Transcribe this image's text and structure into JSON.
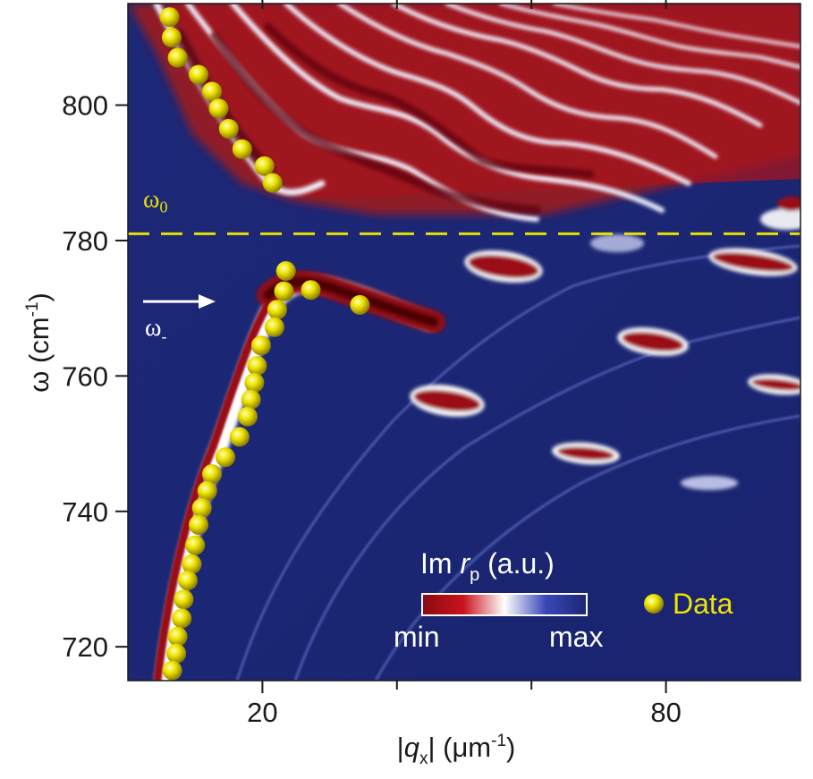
{
  "chart_data": {
    "type": "heatmap",
    "title": "",
    "xlabel": {
      "prefix": "|",
      "var": "q",
      "sub": "x",
      "mid": "| (",
      "unit": "μm",
      "sup": "-1",
      "close": ")"
    },
    "ylabel": {
      "var": "ω",
      "open": " (cm",
      "sup": "-1",
      "close": ")"
    },
    "xlim": [
      0,
      100
    ],
    "ylim": [
      715,
      815
    ],
    "x_ticks": [
      20,
      80
    ],
    "x_minor_ticks": [
      40,
      60
    ],
    "y_ticks": [
      720,
      740,
      760,
      780,
      800
    ],
    "grid": false,
    "colorbar": {
      "title_prefix": "Im ",
      "title_var": "r",
      "title_sub": "p",
      "title_suffix": " (a.u.)",
      "min_label": "min",
      "max_label": "max",
      "low_color": "#8a0a12",
      "mid_color": "#ffffff",
      "high_color": "#1b2673"
    },
    "omega0": {
      "label": "ω",
      "sub": "0",
      "value": 781,
      "color": "#e8e000"
    },
    "omega_minus": {
      "label": "ω",
      "sub": "-",
      "arrow_y": 771
    },
    "legend": {
      "label": "Data",
      "position": "bottom-right",
      "color": "#e6e000"
    },
    "series": [
      {
        "name": "Data",
        "type": "scatter",
        "points": [
          [
            6.2,
            813
          ],
          [
            6.5,
            810
          ],
          [
            7.4,
            807
          ],
          [
            10.5,
            804.5
          ],
          [
            12.5,
            802
          ],
          [
            13.5,
            799.5
          ],
          [
            15,
            796.5
          ],
          [
            17,
            793.5
          ],
          [
            20.3,
            791
          ],
          [
            21.5,
            788.5
          ],
          [
            23.5,
            775.5
          ],
          [
            23.2,
            772.5
          ],
          [
            27.2,
            772.7
          ],
          [
            34.5,
            770.5
          ],
          [
            22.2,
            769.8
          ],
          [
            21.8,
            767.2
          ],
          [
            19.8,
            764.5
          ],
          [
            19.2,
            761.5
          ],
          [
            18.8,
            759.0
          ],
          [
            18.3,
            756.5
          ],
          [
            17.8,
            754.0
          ],
          [
            16.6,
            751.0
          ],
          [
            14.5,
            748.0
          ],
          [
            12.5,
            745.5
          ],
          [
            11.8,
            743.0
          ],
          [
            11.0,
            740.5
          ],
          [
            10.5,
            738.0
          ],
          [
            10.0,
            735.0
          ],
          [
            9.5,
            732.2
          ],
          [
            8.9,
            729.8
          ],
          [
            8.3,
            727.0
          ],
          [
            8.0,
            724.2
          ],
          [
            7.4,
            721.5
          ],
          [
            7.2,
            719.0
          ],
          [
            6.6,
            716.5
          ]
        ]
      }
    ]
  }
}
